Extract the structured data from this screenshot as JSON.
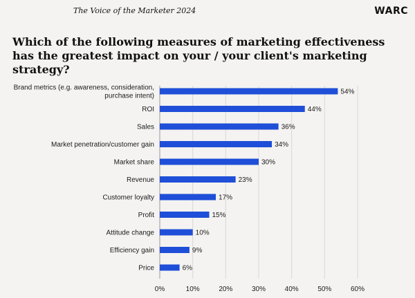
{
  "header": {
    "title": "The Voice of the Marketer 2024",
    "logo": "WARC"
  },
  "question": "Which of the following measures of marketing effectiveness has the greatest impact on your / your client's marketing strategy?",
  "colors": {
    "bar": "#1f4fd8",
    "grid": "#d9d8d6",
    "axis": "#9a9a9a"
  },
  "chart_data": {
    "type": "bar",
    "orientation": "horizontal",
    "categories": [
      [
        "Brand metrics (e.g. awareness, consideration,",
        "purchase intent)"
      ],
      [
        "ROI"
      ],
      [
        "Sales"
      ],
      [
        "Market penetration/customer gain"
      ],
      [
        "Market share"
      ],
      [
        "Revenue"
      ],
      [
        "Customer loyalty"
      ],
      [
        "Profit"
      ],
      [
        "Attitude change"
      ],
      [
        "Efficiency gain"
      ],
      [
        "Price"
      ]
    ],
    "values": [
      54,
      44,
      36,
      34,
      30,
      23,
      17,
      15,
      10,
      9,
      6
    ],
    "value_labels": [
      "54%",
      "44%",
      "36%",
      "34%",
      "30%",
      "23%",
      "17%",
      "15%",
      "10%",
      "9%",
      "6%"
    ],
    "xlim": [
      0,
      60
    ],
    "ticks": [
      0,
      10,
      20,
      30,
      40,
      50,
      60
    ],
    "tick_labels": [
      "0%",
      "10%",
      "20%",
      "30%",
      "40%",
      "50%",
      "60%"
    ],
    "grid": true
  }
}
